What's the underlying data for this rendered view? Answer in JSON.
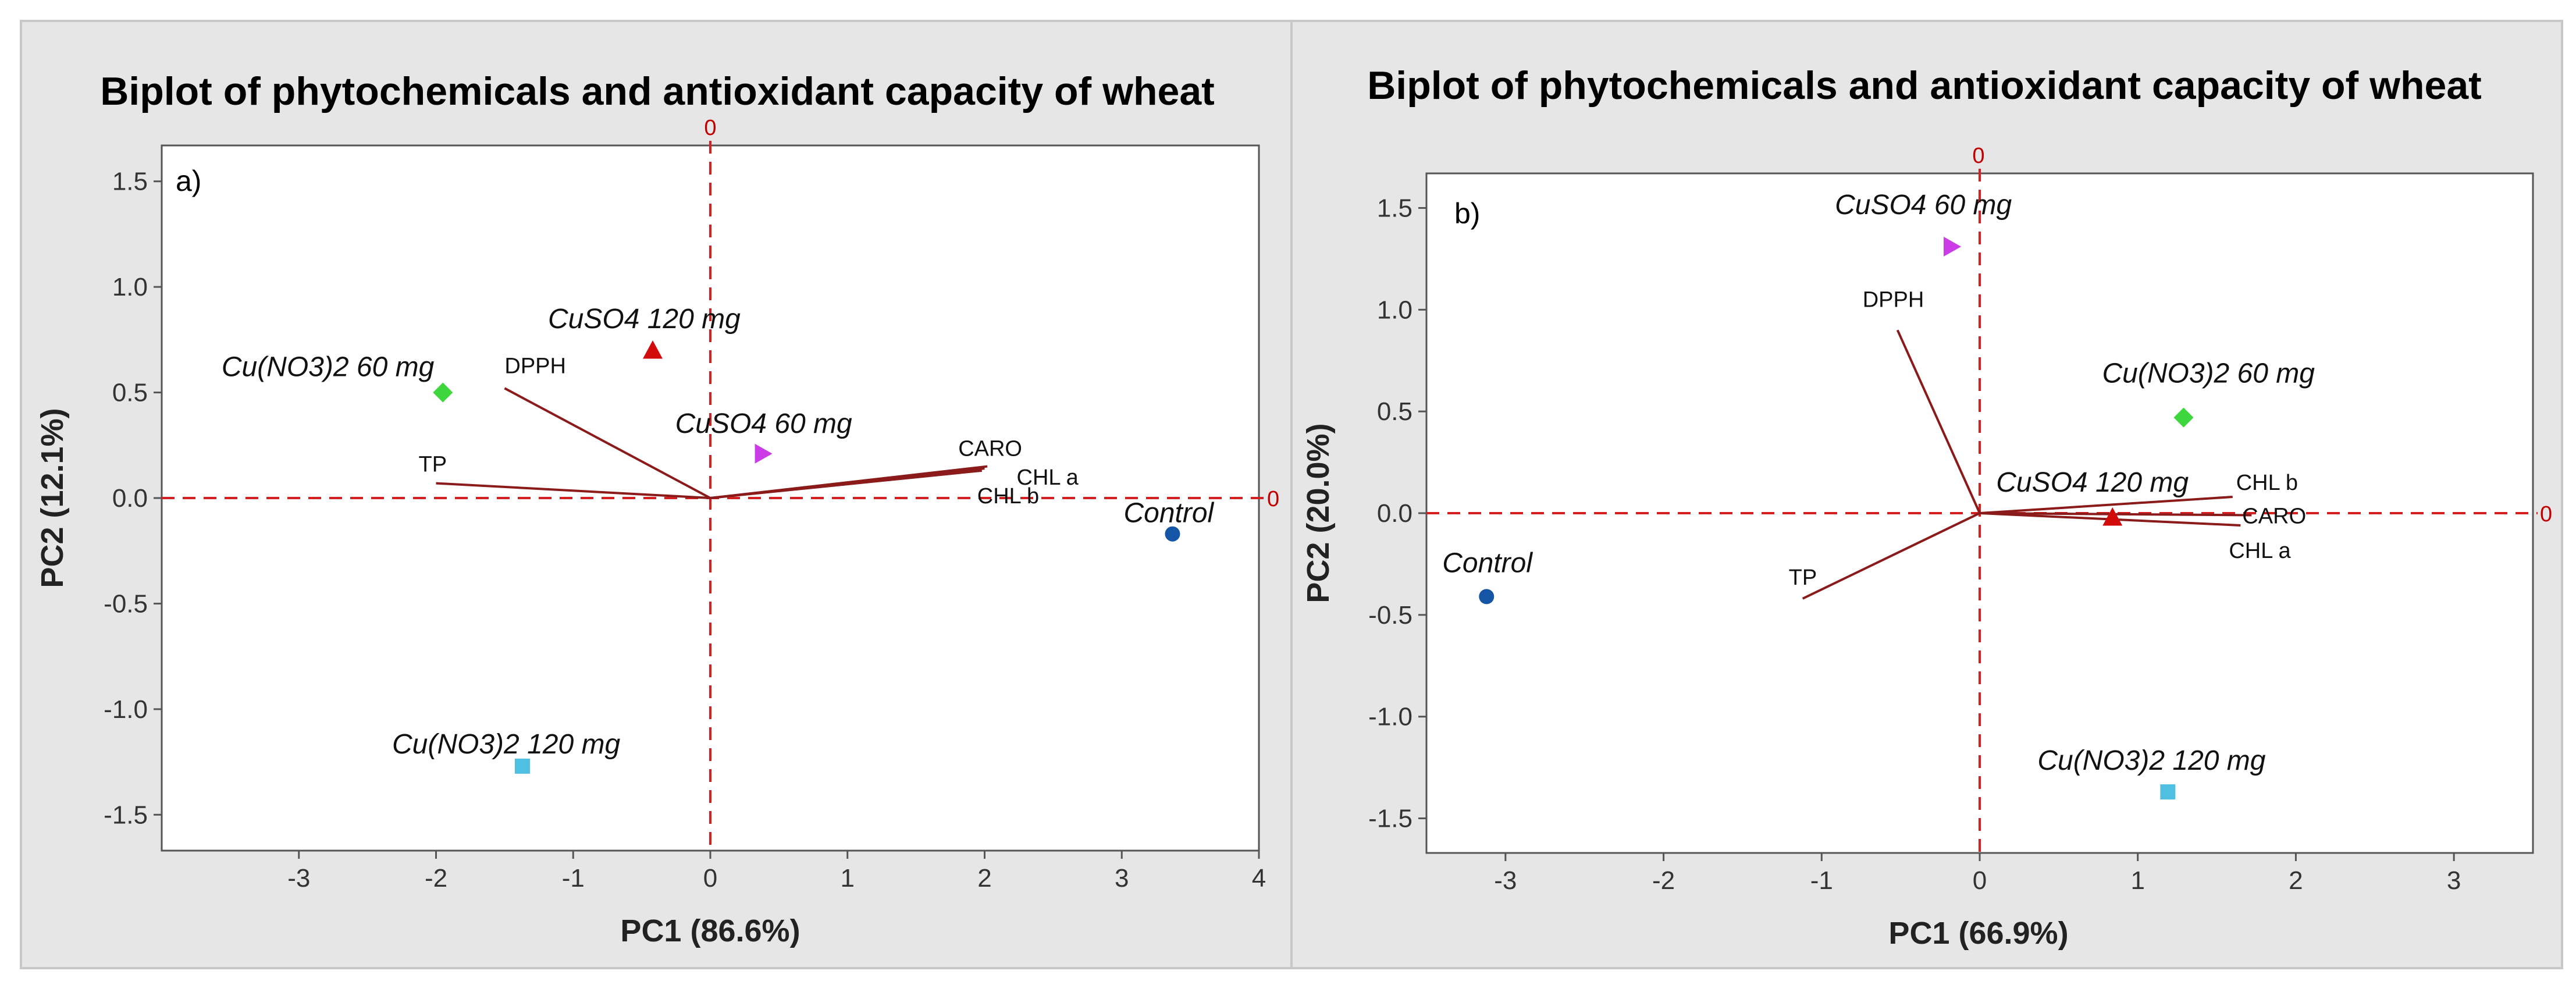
{
  "chart_data": [
    {
      "type": "scatter",
      "subtype": "biplot",
      "title": "Biplot of phytochemicals and antioxidant capacity of wheat",
      "panel_label": "a)",
      "xlabel": "PC1 (86.6%)",
      "ylabel": "PC2 (12.1%)",
      "xlim": [
        -4.0,
        4.0
      ],
      "ylim": [
        -1.67,
        1.67
      ],
      "xticks": [
        -3,
        -2,
        -1,
        0,
        1,
        2,
        3,
        4
      ],
      "xtick_labels": [
        "-3",
        "-2",
        "-1",
        "0",
        "1",
        "2",
        "3",
        "4"
      ],
      "yticks": [
        -1.5,
        -1.0,
        -0.5,
        0.0,
        0.5,
        1.0,
        1.5
      ],
      "ytick_labels": [
        "-1.5",
        "-1.0",
        "-0.5",
        "0.0",
        "0.5",
        "1.0",
        "1.5"
      ],
      "reference_lines": {
        "x": 0,
        "y": 0,
        "x_label": "0",
        "y_label": "0"
      },
      "points": [
        {
          "name": "Cu(NO3)2 60 mg",
          "x": -1.95,
          "y": 0.5,
          "marker": "diamond",
          "color": "#3dd63d"
        },
        {
          "name": "CuSO4 120 mg",
          "x": -0.42,
          "y": 0.7,
          "marker": "triangle-up",
          "color": "#d10a0a"
        },
        {
          "name": "CuSO4 60 mg",
          "x": 0.38,
          "y": 0.21,
          "marker": "triangle-right",
          "color": "#cc3ce6"
        },
        {
          "name": "Control",
          "x": 3.37,
          "y": -0.17,
          "marker": "circle",
          "color": "#1456a5"
        },
        {
          "name": "Cu(NO3)2 120 mg",
          "x": -1.37,
          "y": -1.27,
          "marker": "square",
          "color": "#4fbfe2"
        }
      ],
      "vectors": [
        {
          "name": "DPPH",
          "x": -1.5,
          "y": 0.52
        },
        {
          "name": "TP",
          "x": -2.0,
          "y": 0.07
        },
        {
          "name": "CARO",
          "x": 2.02,
          "y": 0.15
        },
        {
          "name": "CHL a",
          "x": 2.0,
          "y": 0.14
        },
        {
          "name": "CHL b",
          "x": 1.98,
          "y": 0.13
        }
      ]
    },
    {
      "type": "scatter",
      "subtype": "biplot",
      "title": "Biplot of phytochemicals and antioxidant capacity of wheat",
      "panel_label": "b)",
      "xlabel": "PC1 (66.9%)",
      "ylabel": "PC2 (20.0%)",
      "xlim": [
        -3.5,
        3.5
      ],
      "ylim": [
        -1.67,
        1.67
      ],
      "xticks": [
        -3,
        -2,
        -1,
        0,
        1,
        2,
        3
      ],
      "xtick_labels": [
        "-3",
        "-2",
        "-1",
        "0",
        "1",
        "2",
        "3"
      ],
      "yticks": [
        -1.5,
        -1.0,
        -0.5,
        0.0,
        0.5,
        1.0,
        1.5
      ],
      "ytick_labels": [
        "-1.5",
        "-1.0",
        "-0.5",
        "0.0",
        "0.5",
        "1.0",
        "1.5"
      ],
      "reference_lines": {
        "x": 0,
        "y": 0,
        "x_label": "0",
        "y_label": "0"
      },
      "points": [
        {
          "name": "CuSO4 60 mg",
          "x": -0.18,
          "y": 1.31,
          "marker": "triangle-right",
          "color": "#cc3ce6"
        },
        {
          "name": "Cu(NO3)2 60 mg",
          "x": 1.29,
          "y": 0.47,
          "marker": "diamond",
          "color": "#3dd63d"
        },
        {
          "name": "CuSO4 120 mg",
          "x": 0.84,
          "y": -0.02,
          "marker": "triangle-up",
          "color": "#d10a0a"
        },
        {
          "name": "Control",
          "x": -3.12,
          "y": -0.41,
          "marker": "circle",
          "color": "#1456a5"
        },
        {
          "name": "Cu(NO3)2 120 mg",
          "x": 1.19,
          "y": -1.37,
          "marker": "square",
          "color": "#4fbfe2"
        }
      ],
      "vectors": [
        {
          "name": "DPPH",
          "x": -0.52,
          "y": 0.9
        },
        {
          "name": "TP",
          "x": -1.12,
          "y": -0.42
        },
        {
          "name": "CHL b",
          "x": 1.6,
          "y": 0.08
        },
        {
          "name": "CARO",
          "x": 1.72,
          "y": -0.01
        },
        {
          "name": "CHL a",
          "x": 1.65,
          "y": -0.06
        }
      ]
    }
  ],
  "colors": {
    "vector": "#8b1a1a",
    "reference_line": "#d42020",
    "panel_background": "#e6e6e6",
    "plot_background": "#ffffff"
  }
}
